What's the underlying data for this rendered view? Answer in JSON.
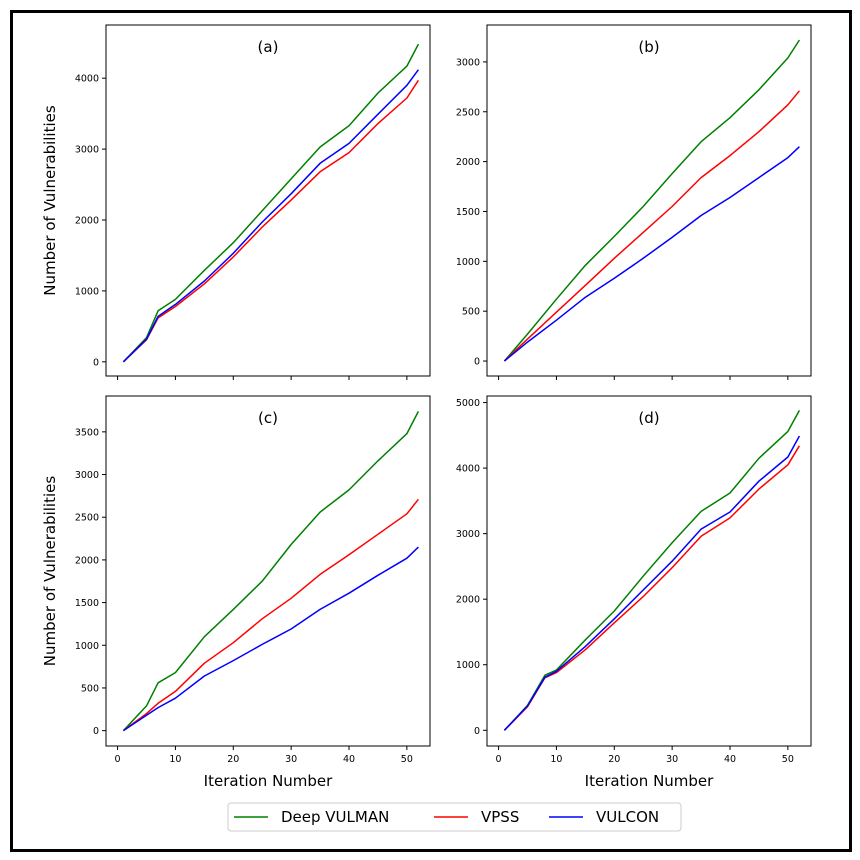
{
  "chart_data": [
    {
      "type": "line",
      "panel_label": "(a)",
      "ylabel": "Number of Vulnerabilities",
      "xlabel": "",
      "xlim": [
        -2,
        54
      ],
      "ylim": [
        -200,
        4750
      ],
      "xticks": [
        0,
        10,
        20,
        30,
        40,
        50
      ],
      "yticks": [
        0,
        1000,
        2000,
        3000,
        4000
      ],
      "show_x_tick_labels": false,
      "series": [
        {
          "name": "Deep VULMAN",
          "color": "#008000",
          "x": [
            1,
            5,
            7,
            10,
            15,
            20,
            25,
            30,
            35,
            40,
            45,
            50,
            52
          ],
          "values": [
            0,
            340,
            720,
            880,
            1290,
            1680,
            2130,
            2580,
            3030,
            3330,
            3790,
            4170,
            4480
          ]
        },
        {
          "name": "VPSS",
          "color": "#ff0000",
          "x": [
            1,
            5,
            7,
            10,
            15,
            20,
            25,
            30,
            35,
            40,
            45,
            50,
            52
          ],
          "values": [
            0,
            310,
            620,
            780,
            1100,
            1480,
            1900,
            2280,
            2680,
            2950,
            3360,
            3720,
            3970
          ]
        },
        {
          "name": "VULCON",
          "color": "#0000ff",
          "x": [
            1,
            5,
            7,
            10,
            15,
            20,
            25,
            30,
            35,
            40,
            45,
            50,
            52
          ],
          "values": [
            0,
            320,
            640,
            810,
            1140,
            1530,
            1970,
            2370,
            2800,
            3080,
            3490,
            3900,
            4120
          ]
        }
      ]
    },
    {
      "type": "line",
      "panel_label": "(b)",
      "ylabel": "",
      "xlabel": "",
      "xlim": [
        -2,
        54
      ],
      "ylim": [
        -150,
        3370
      ],
      "xticks": [
        0,
        10,
        20,
        30,
        40,
        50
      ],
      "yticks": [
        0,
        500,
        1000,
        1500,
        2000,
        2500,
        3000
      ],
      "show_x_tick_labels": false,
      "series": [
        {
          "name": "Deep VULMAN",
          "color": "#008000",
          "x": [
            1,
            5,
            10,
            15,
            20,
            25,
            30,
            35,
            40,
            45,
            50,
            52
          ],
          "values": [
            0,
            270,
            620,
            960,
            1250,
            1550,
            1880,
            2200,
            2440,
            2720,
            3040,
            3220
          ]
        },
        {
          "name": "VPSS",
          "color": "#ff0000",
          "x": [
            1,
            5,
            10,
            15,
            20,
            25,
            30,
            35,
            40,
            45,
            50,
            52
          ],
          "values": [
            0,
            220,
            490,
            760,
            1030,
            1290,
            1550,
            1840,
            2060,
            2300,
            2570,
            2710
          ]
        },
        {
          "name": "VULCON",
          "color": "#0000ff",
          "x": [
            1,
            5,
            10,
            15,
            20,
            25,
            30,
            35,
            40,
            45,
            50,
            52
          ],
          "values": [
            0,
            190,
            410,
            640,
            830,
            1030,
            1240,
            1460,
            1640,
            1840,
            2040,
            2150
          ]
        }
      ]
    },
    {
      "type": "line",
      "panel_label": "(c)",
      "ylabel": "Number of Vulnerabilities",
      "xlabel": "Iteration Number",
      "xlim": [
        -2,
        54
      ],
      "ylim": [
        -180,
        3920
      ],
      "xticks": [
        0,
        10,
        20,
        30,
        40,
        50
      ],
      "yticks": [
        0,
        500,
        1000,
        1500,
        2000,
        2500,
        3000,
        3500
      ],
      "show_x_tick_labels": true,
      "series": [
        {
          "name": "Deep VULMAN",
          "color": "#008000",
          "x": [
            1,
            5,
            7,
            10,
            15,
            20,
            25,
            30,
            35,
            40,
            45,
            50,
            52
          ],
          "values": [
            0,
            290,
            560,
            680,
            1100,
            1420,
            1750,
            2180,
            2560,
            2820,
            3160,
            3480,
            3740
          ]
        },
        {
          "name": "VPSS",
          "color": "#ff0000",
          "x": [
            1,
            5,
            7,
            10,
            15,
            20,
            25,
            30,
            35,
            40,
            45,
            50,
            52
          ],
          "values": [
            0,
            200,
            320,
            460,
            790,
            1030,
            1310,
            1550,
            1830,
            2060,
            2300,
            2540,
            2710
          ]
        },
        {
          "name": "VULCON",
          "color": "#0000ff",
          "x": [
            1,
            5,
            7,
            10,
            15,
            20,
            25,
            30,
            35,
            40,
            45,
            50,
            52
          ],
          "values": [
            0,
            180,
            270,
            380,
            640,
            820,
            1010,
            1190,
            1420,
            1610,
            1820,
            2020,
            2150
          ]
        }
      ]
    },
    {
      "type": "line",
      "panel_label": "(d)",
      "ylabel": "",
      "xlabel": "Iteration Number",
      "xlim": [
        -2,
        54
      ],
      "ylim": [
        -240,
        5100
      ],
      "xticks": [
        0,
        10,
        20,
        30,
        40,
        50
      ],
      "yticks": [
        0,
        1000,
        2000,
        3000,
        4000,
        5000
      ],
      "show_x_tick_labels": true,
      "series": [
        {
          "name": "Deep VULMAN",
          "color": "#008000",
          "x": [
            1,
            5,
            8,
            10,
            15,
            20,
            25,
            30,
            35,
            40,
            45,
            50,
            52
          ],
          "values": [
            0,
            380,
            840,
            920,
            1380,
            1820,
            2350,
            2860,
            3340,
            3620,
            4150,
            4560,
            4880
          ]
        },
        {
          "name": "VPSS",
          "color": "#ff0000",
          "x": [
            1,
            5,
            8,
            10,
            15,
            20,
            25,
            30,
            35,
            40,
            45,
            50,
            52
          ],
          "values": [
            0,
            360,
            800,
            880,
            1230,
            1640,
            2040,
            2480,
            2960,
            3240,
            3680,
            4050,
            4340
          ]
        },
        {
          "name": "VULCON",
          "color": "#0000ff",
          "x": [
            1,
            5,
            8,
            10,
            15,
            20,
            25,
            30,
            35,
            40,
            45,
            50,
            52
          ],
          "values": [
            0,
            370,
            810,
            900,
            1280,
            1700,
            2140,
            2580,
            3070,
            3330,
            3800,
            4170,
            4490
          ]
        }
      ]
    }
  ],
  "legend": {
    "placement": "bottom-center",
    "entries": [
      {
        "name": "Deep VULMAN",
        "color": "#008000"
      },
      {
        "name": "VPSS",
        "color": "#ff0000"
      },
      {
        "name": "VULCON",
        "color": "#0000ff"
      }
    ]
  }
}
